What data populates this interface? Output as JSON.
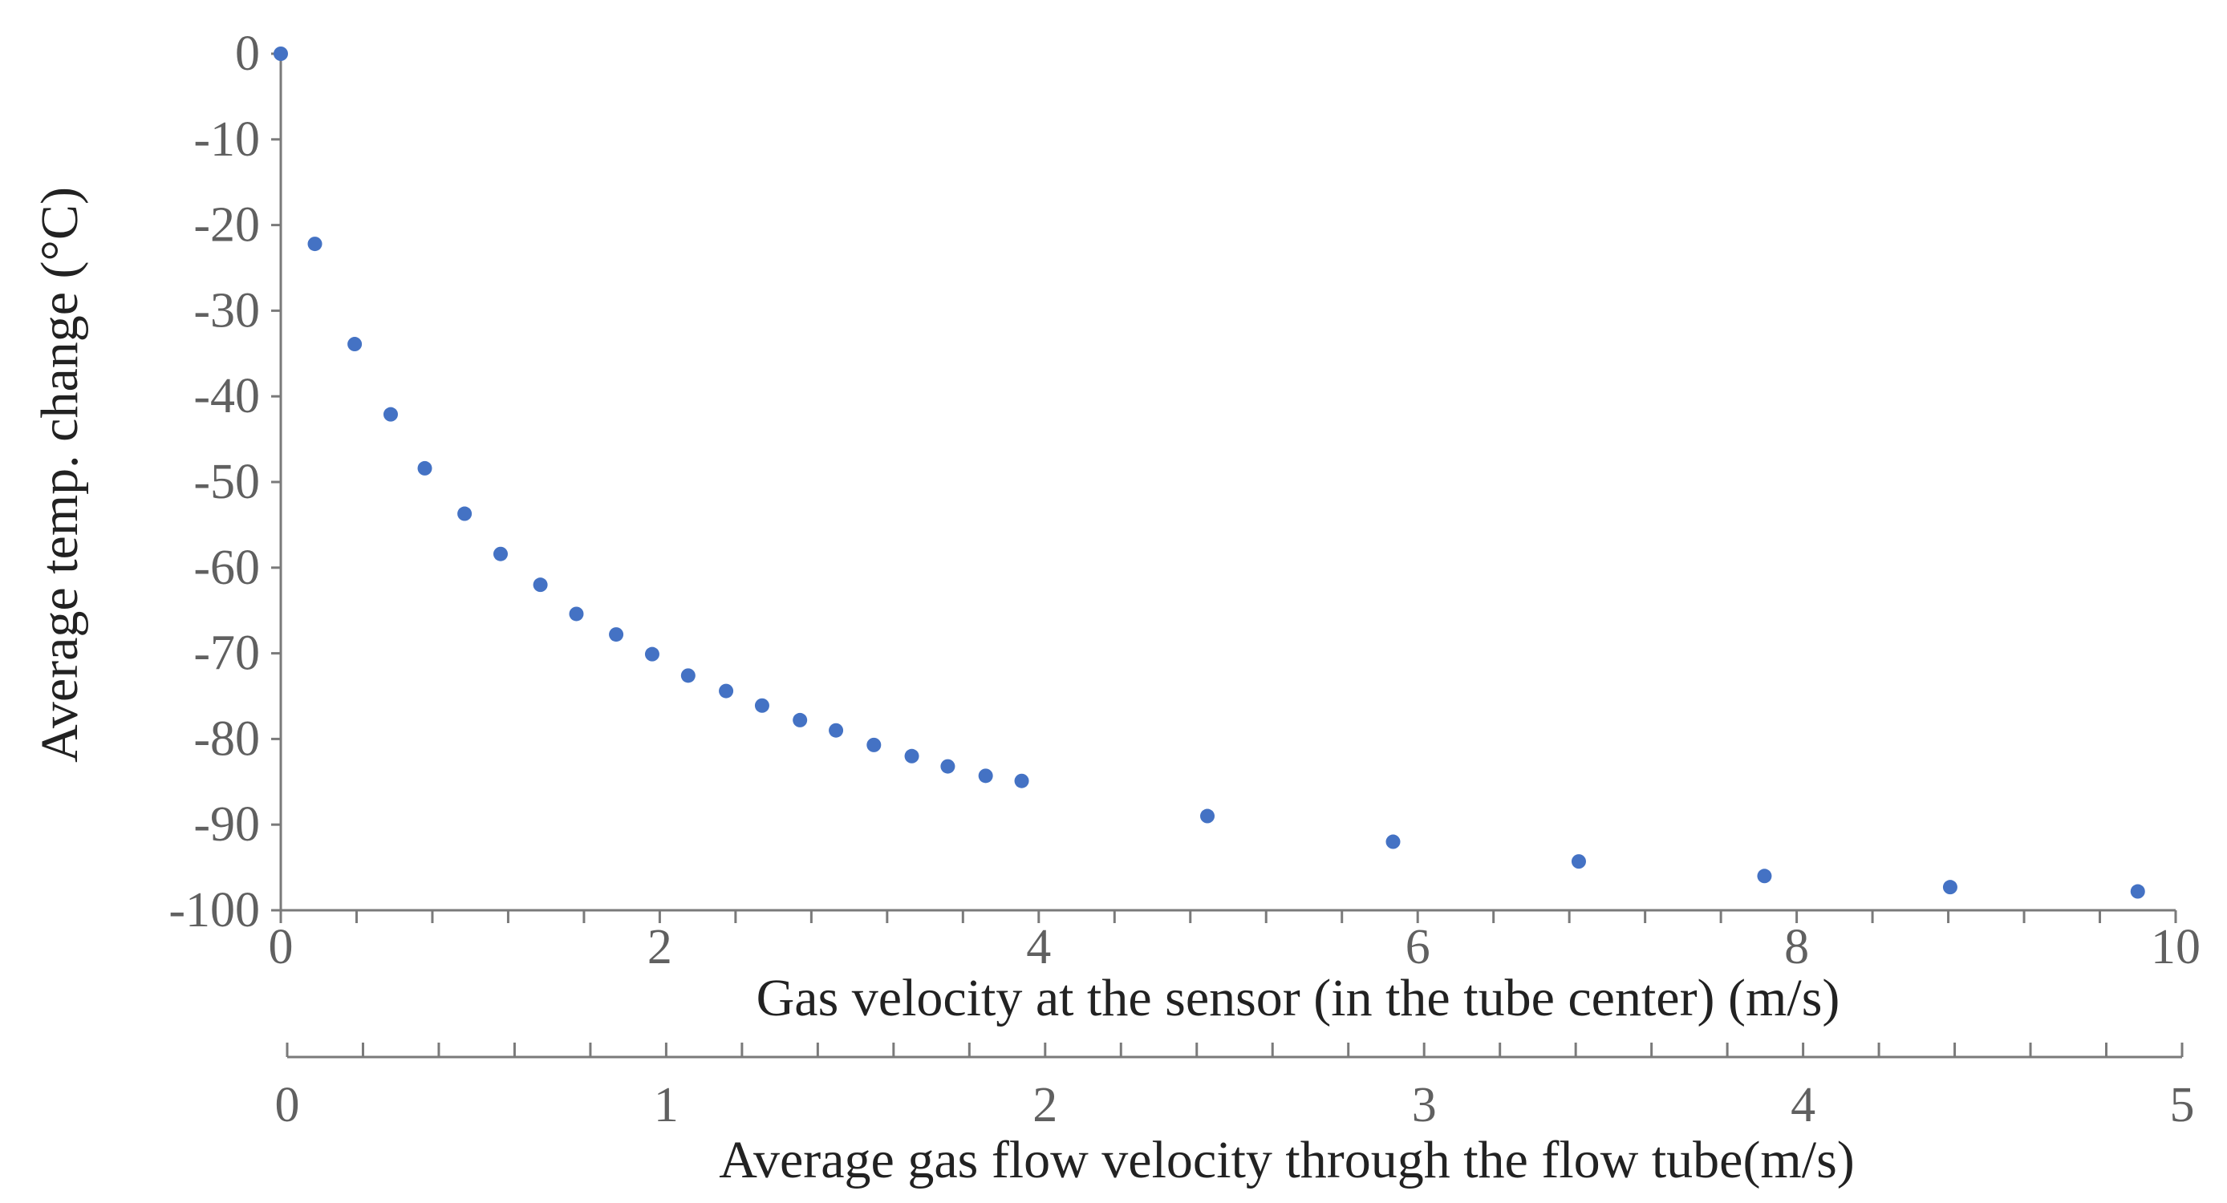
{
  "chart_data": {
    "type": "scatter",
    "title": "",
    "ylabel": "Average temp. change (°C)",
    "xlabel": "Gas velocity at the sensor (in the tube center) (m/s)",
    "x2label": "Average gas flow velocity through the flow tube(m/s)",
    "xlim": [
      0,
      10
    ],
    "x2lim": [
      0,
      5
    ],
    "ylim": [
      -100,
      0
    ],
    "x_ticks": [
      "0",
      "2",
      "4",
      "6",
      "8",
      "10"
    ],
    "x2_ticks": [
      "0",
      "1",
      "2",
      "3",
      "4",
      "5"
    ],
    "y_ticks": [
      "0",
      "-10",
      "-20",
      "-30",
      "-40",
      "-50",
      "-60",
      "-70",
      "-80",
      "-90",
      "-100"
    ],
    "grid": false,
    "color": "#4472c4",
    "series": [
      {
        "name": "Average temp. change",
        "points": [
          {
            "x": 0.0,
            "y": 0.0
          },
          {
            "x": 0.18,
            "y": -22.2
          },
          {
            "x": 0.39,
            "y": -33.9
          },
          {
            "x": 0.58,
            "y": -42.1
          },
          {
            "x": 0.76,
            "y": -48.4
          },
          {
            "x": 0.97,
            "y": -53.7
          },
          {
            "x": 1.16,
            "y": -58.4
          },
          {
            "x": 1.37,
            "y": -62.0
          },
          {
            "x": 1.56,
            "y": -65.4
          },
          {
            "x": 1.77,
            "y": -67.8
          },
          {
            "x": 1.96,
            "y": -70.1
          },
          {
            "x": 2.15,
            "y": -72.6
          },
          {
            "x": 2.35,
            "y": -74.4
          },
          {
            "x": 2.54,
            "y": -76.1
          },
          {
            "x": 2.74,
            "y": -77.8
          },
          {
            "x": 2.93,
            "y": -79.0
          },
          {
            "x": 3.13,
            "y": -80.7
          },
          {
            "x": 3.33,
            "y": -82.0
          },
          {
            "x": 3.52,
            "y": -83.2
          },
          {
            "x": 3.72,
            "y": -84.3
          },
          {
            "x": 3.91,
            "y": -84.9
          },
          {
            "x": 4.89,
            "y": -89.0
          },
          {
            "x": 5.87,
            "y": -92.0
          },
          {
            "x": 6.85,
            "y": -94.3
          },
          {
            "x": 7.83,
            "y": -96.0
          },
          {
            "x": 8.81,
            "y": -97.3
          },
          {
            "x": 9.8,
            "y": -97.8
          }
        ]
      }
    ]
  }
}
